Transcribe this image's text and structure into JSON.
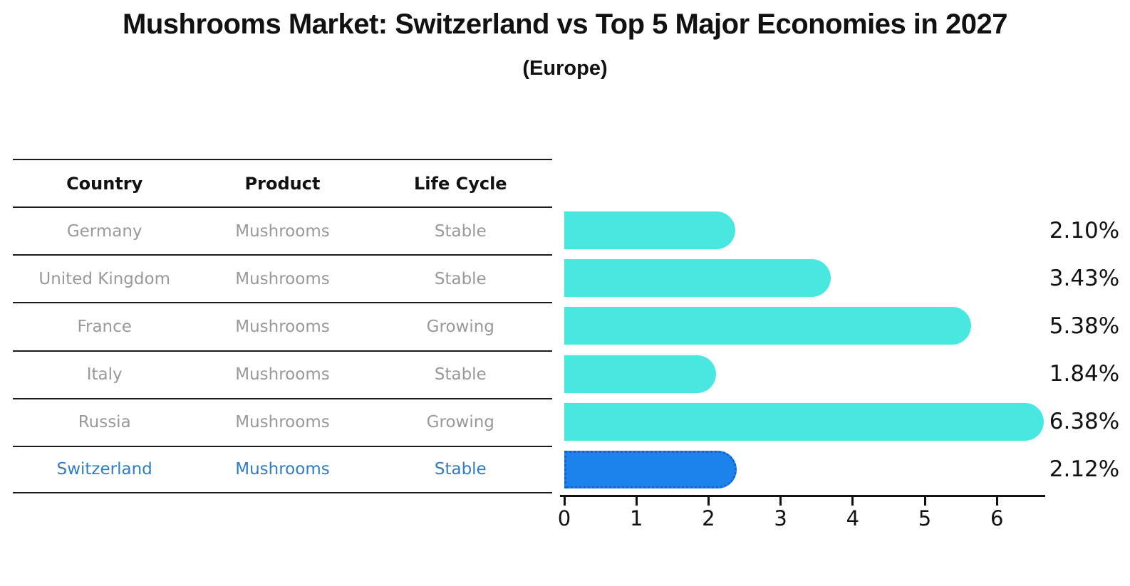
{
  "title": "Mushrooms Market: Switzerland vs Top 5 Major Economies in 2027",
  "subtitle": "(Europe)",
  "colors": {
    "bar": "#48e8e0",
    "highlight_bar": "#1c83ec",
    "highlight_border": "#0d66d0",
    "row_text": "#999999",
    "highlight_text": "#2e7cc8",
    "header_text": "#111111",
    "axis": "#111111"
  },
  "table": {
    "headers": [
      "Country",
      "Product",
      "Life Cycle"
    ],
    "rows": [
      {
        "country": "Germany",
        "product": "Mushrooms",
        "life_cycle": "Stable",
        "highlight": false
      },
      {
        "country": "United Kingdom",
        "product": "Mushrooms",
        "life_cycle": "Stable",
        "highlight": false
      },
      {
        "country": "France",
        "product": "Mushrooms",
        "life_cycle": "Growing",
        "highlight": false
      },
      {
        "country": "Italy",
        "product": "Mushrooms",
        "life_cycle": "Stable",
        "highlight": false
      },
      {
        "country": "Russia",
        "product": "Mushrooms",
        "life_cycle": "Growing",
        "highlight": false
      },
      {
        "country": "Switzerland",
        "product": "Mushrooms",
        "life_cycle": "Stable",
        "highlight": true
      }
    ]
  },
  "chart_data": {
    "type": "bar",
    "orientation": "horizontal",
    "title": "Mushrooms Market: Switzerland vs Top 5 Major Economies in 2027",
    "subtitle": "(Europe)",
    "categories": [
      "Germany",
      "United Kingdom",
      "France",
      "Italy",
      "Russia",
      "Switzerland"
    ],
    "values": [
      2.1,
      3.43,
      5.38,
      1.84,
      6.38,
      2.12
    ],
    "labels": [
      "2.10%",
      "3.43%",
      "5.38%",
      "1.84%",
      "6.38%",
      "2.12%"
    ],
    "highlight_category": "Switzerland",
    "xlabel": "",
    "ylabel": "",
    "xticks": [
      0,
      1,
      2,
      3,
      4,
      5,
      6
    ],
    "xlim": [
      0,
      6.7
    ],
    "grid": false,
    "legend": false
  }
}
